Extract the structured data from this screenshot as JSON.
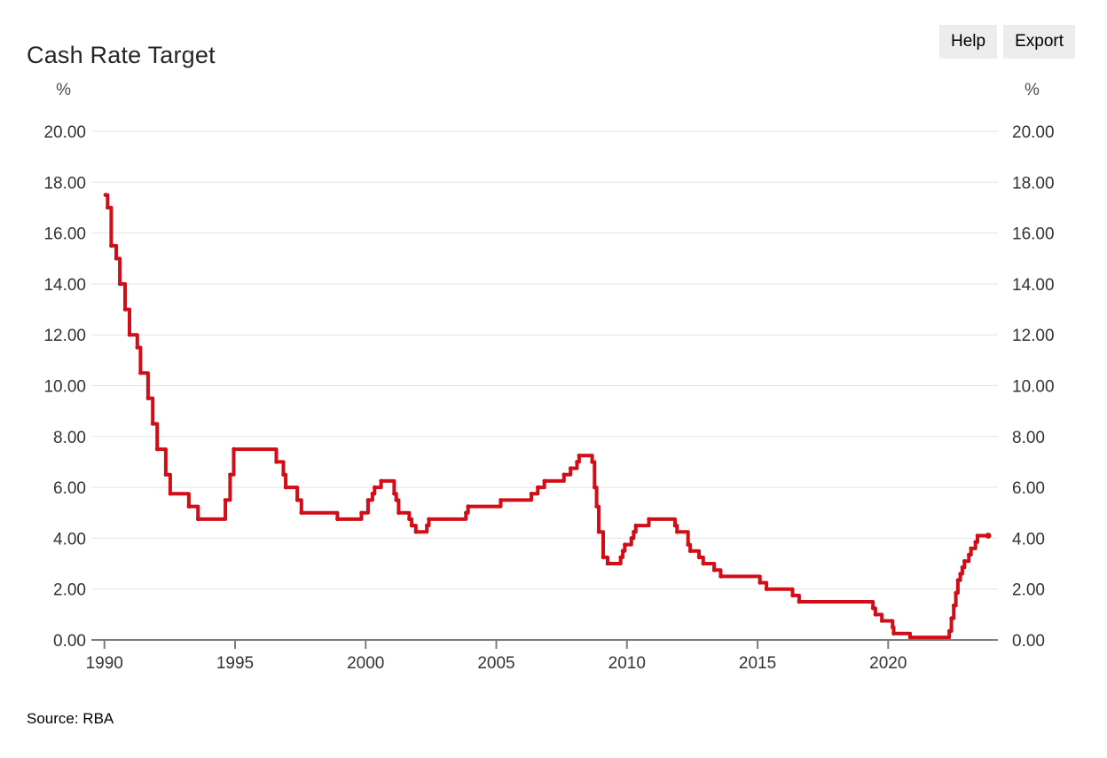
{
  "header": {
    "title": "Cash Rate Target",
    "help_label": "Help",
    "export_label": "Export"
  },
  "chart_data": {
    "type": "line",
    "subtype": "step-after",
    "title": "Cash Rate Target",
    "unit_label": "%",
    "source": "Source: RBA",
    "line_color": "#d10e17",
    "grid_color": "#e3e3e3",
    "axis_color": "#7d7d7d",
    "tick_label_color": "#333333",
    "unit_label_color": "#4d4d4d",
    "ylim": [
      0,
      20
    ],
    "ytick_step": 2,
    "ytick_decimals": 2,
    "xlim": [
      1989.5,
      2024.2
    ],
    "xticks": [
      1990,
      1995,
      2000,
      2005,
      2010,
      2015,
      2020
    ],
    "grid": "horizontal-only",
    "legend_position": "none",
    "xlabel": "",
    "ylabel": "%",
    "series": [
      {
        "name": "Cash Rate Target (%)",
        "points": [
          [
            1990.04,
            17.5
          ],
          [
            1990.12,
            17.0
          ],
          [
            1990.26,
            15.5
          ],
          [
            1990.45,
            15.0
          ],
          [
            1990.59,
            14.0
          ],
          [
            1990.79,
            13.0
          ],
          [
            1990.96,
            12.0
          ],
          [
            1991.26,
            11.5
          ],
          [
            1991.38,
            10.5
          ],
          [
            1991.67,
            9.5
          ],
          [
            1991.85,
            8.5
          ],
          [
            1992.02,
            7.5
          ],
          [
            1992.35,
            6.5
          ],
          [
            1992.52,
            5.75
          ],
          [
            1993.23,
            5.25
          ],
          [
            1993.58,
            4.75
          ],
          [
            1994.63,
            5.5
          ],
          [
            1994.81,
            6.5
          ],
          [
            1994.95,
            7.5
          ],
          [
            1996.58,
            7.0
          ],
          [
            1996.85,
            6.5
          ],
          [
            1996.94,
            6.0
          ],
          [
            1997.38,
            5.5
          ],
          [
            1997.54,
            5.0
          ],
          [
            1998.92,
            4.75
          ],
          [
            1999.84,
            5.0
          ],
          [
            2000.09,
            5.5
          ],
          [
            2000.26,
            5.75
          ],
          [
            2000.34,
            6.0
          ],
          [
            2000.59,
            6.25
          ],
          [
            2001.09,
            5.75
          ],
          [
            2001.17,
            5.5
          ],
          [
            2001.26,
            5.0
          ],
          [
            2001.67,
            4.75
          ],
          [
            2001.76,
            4.5
          ],
          [
            2001.92,
            4.25
          ],
          [
            2002.34,
            4.5
          ],
          [
            2002.42,
            4.75
          ],
          [
            2003.84,
            5.0
          ],
          [
            2003.92,
            5.25
          ],
          [
            2005.17,
            5.5
          ],
          [
            2006.34,
            5.75
          ],
          [
            2006.59,
            6.0
          ],
          [
            2006.84,
            6.25
          ],
          [
            2007.59,
            6.5
          ],
          [
            2007.84,
            6.75
          ],
          [
            2008.09,
            7.0
          ],
          [
            2008.17,
            7.25
          ],
          [
            2008.67,
            7.0
          ],
          [
            2008.76,
            6.0
          ],
          [
            2008.84,
            5.25
          ],
          [
            2008.92,
            4.25
          ],
          [
            2009.09,
            3.25
          ],
          [
            2009.26,
            3.0
          ],
          [
            2009.76,
            3.25
          ],
          [
            2009.84,
            3.5
          ],
          [
            2009.92,
            3.75
          ],
          [
            2010.17,
            4.0
          ],
          [
            2010.26,
            4.25
          ],
          [
            2010.34,
            4.5
          ],
          [
            2010.84,
            4.75
          ],
          [
            2011.84,
            4.5
          ],
          [
            2011.92,
            4.25
          ],
          [
            2012.34,
            3.75
          ],
          [
            2012.42,
            3.5
          ],
          [
            2012.76,
            3.25
          ],
          [
            2012.92,
            3.0
          ],
          [
            2013.34,
            2.75
          ],
          [
            2013.59,
            2.5
          ],
          [
            2015.09,
            2.25
          ],
          [
            2015.34,
            2.0
          ],
          [
            2016.34,
            1.75
          ],
          [
            2016.59,
            1.5
          ],
          [
            2019.42,
            1.25
          ],
          [
            2019.51,
            1.0
          ],
          [
            2019.76,
            0.75
          ],
          [
            2020.17,
            0.5
          ],
          [
            2020.21,
            0.25
          ],
          [
            2020.84,
            0.1
          ],
          [
            2022.34,
            0.35
          ],
          [
            2022.42,
            0.85
          ],
          [
            2022.51,
            1.35
          ],
          [
            2022.59,
            1.85
          ],
          [
            2022.67,
            2.35
          ],
          [
            2022.76,
            2.6
          ],
          [
            2022.84,
            2.85
          ],
          [
            2022.92,
            3.1
          ],
          [
            2023.09,
            3.35
          ],
          [
            2023.17,
            3.6
          ],
          [
            2023.34,
            3.85
          ],
          [
            2023.42,
            4.1
          ],
          [
            2023.83,
            4.1
          ]
        ]
      }
    ]
  }
}
